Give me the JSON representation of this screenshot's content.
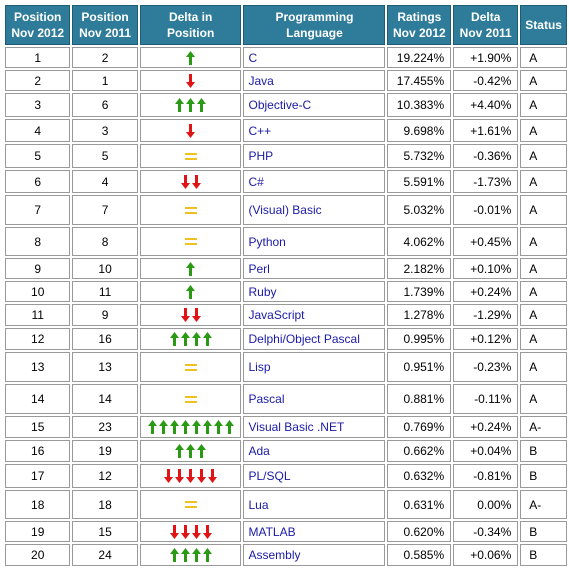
{
  "headers": {
    "pos2012": [
      "Position",
      "Nov 2012"
    ],
    "pos2011": [
      "Position",
      "Nov 2011"
    ],
    "delta_pos": "Delta in Position",
    "language": "Programming Language",
    "ratings": [
      "Ratings",
      "Nov 2012"
    ],
    "delta": [
      "Delta",
      "Nov 2011"
    ],
    "status": "Status"
  },
  "colors": {
    "header_bg": "#2f7c9a",
    "up": "#2a9a14",
    "down": "#e01414",
    "same": "#f0c020",
    "link": "#1a1aa6"
  },
  "rows": [
    {
      "p12": "1",
      "p11": "2",
      "dir": "up",
      "n": 1,
      "lang": "C",
      "rating": "19.224%",
      "delta": "+1.90%",
      "status": "A"
    },
    {
      "p12": "2",
      "p11": "1",
      "dir": "down",
      "n": 1,
      "lang": "Java",
      "rating": "17.455%",
      "delta": "-0.42%",
      "status": "A"
    },
    {
      "p12": "3",
      "p11": "6",
      "dir": "up",
      "n": 3,
      "lang": "Objective-C",
      "rating": "10.383%",
      "delta": "+4.40%",
      "status": "A"
    },
    {
      "p12": "4",
      "p11": "3",
      "dir": "down",
      "n": 1,
      "lang": "C++",
      "rating": "9.698%",
      "delta": "+1.61%",
      "status": "A"
    },
    {
      "p12": "5",
      "p11": "5",
      "dir": "same",
      "n": 1,
      "lang": "PHP",
      "rating": "5.732%",
      "delta": "-0.36%",
      "status": "A"
    },
    {
      "p12": "6",
      "p11": "4",
      "dir": "down",
      "n": 2,
      "lang": "C#",
      "rating": "5.591%",
      "delta": "-1.73%",
      "status": "A"
    },
    {
      "p12": "7",
      "p11": "7",
      "dir": "same",
      "n": 1,
      "lang": "(Visual) Basic",
      "rating": "5.032%",
      "delta": "-0.01%",
      "status": "A"
    },
    {
      "p12": "8",
      "p11": "8",
      "dir": "same",
      "n": 1,
      "lang": "Python",
      "rating": "4.062%",
      "delta": "+0.45%",
      "status": "A"
    },
    {
      "p12": "9",
      "p11": "10",
      "dir": "up",
      "n": 1,
      "lang": "Perl",
      "rating": "2.182%",
      "delta": "+0.10%",
      "status": "A"
    },
    {
      "p12": "10",
      "p11": "11",
      "dir": "up",
      "n": 1,
      "lang": "Ruby",
      "rating": "1.739%",
      "delta": "+0.24%",
      "status": "A"
    },
    {
      "p12": "11",
      "p11": "9",
      "dir": "down",
      "n": 2,
      "lang": "JavaScript",
      "rating": "1.278%",
      "delta": "-1.29%",
      "status": "A"
    },
    {
      "p12": "12",
      "p11": "16",
      "dir": "up",
      "n": 4,
      "lang": "Delphi/Object Pascal",
      "rating": "0.995%",
      "delta": "+0.12%",
      "status": "A"
    },
    {
      "p12": "13",
      "p11": "13",
      "dir": "same",
      "n": 1,
      "lang": "Lisp",
      "rating": "0.951%",
      "delta": "-0.23%",
      "status": "A"
    },
    {
      "p12": "14",
      "p11": "14",
      "dir": "same",
      "n": 1,
      "lang": "Pascal",
      "rating": "0.881%",
      "delta": "-0.11%",
      "status": "A"
    },
    {
      "p12": "15",
      "p11": "23",
      "dir": "up",
      "n": 8,
      "lang": "Visual Basic .NET",
      "rating": "0.769%",
      "delta": "+0.24%",
      "status": "A-"
    },
    {
      "p12": "16",
      "p11": "19",
      "dir": "up",
      "n": 3,
      "lang": "Ada",
      "rating": "0.662%",
      "delta": "+0.04%",
      "status": "B"
    },
    {
      "p12": "17",
      "p11": "12",
      "dir": "down",
      "n": 5,
      "lang": "PL/SQL",
      "rating": "0.632%",
      "delta": "-0.81%",
      "status": "B"
    },
    {
      "p12": "18",
      "p11": "18",
      "dir": "same",
      "n": 1,
      "lang": "Lua",
      "rating": "0.631%",
      "delta": "0.00%",
      "status": "A-"
    },
    {
      "p12": "19",
      "p11": "15",
      "dir": "down",
      "n": 4,
      "lang": "MATLAB",
      "rating": "0.620%",
      "delta": "-0.34%",
      "status": "B"
    },
    {
      "p12": "20",
      "p11": "24",
      "dir": "up",
      "n": 4,
      "lang": "Assembly",
      "rating": "0.585%",
      "delta": "+0.06%",
      "status": "B"
    }
  ]
}
